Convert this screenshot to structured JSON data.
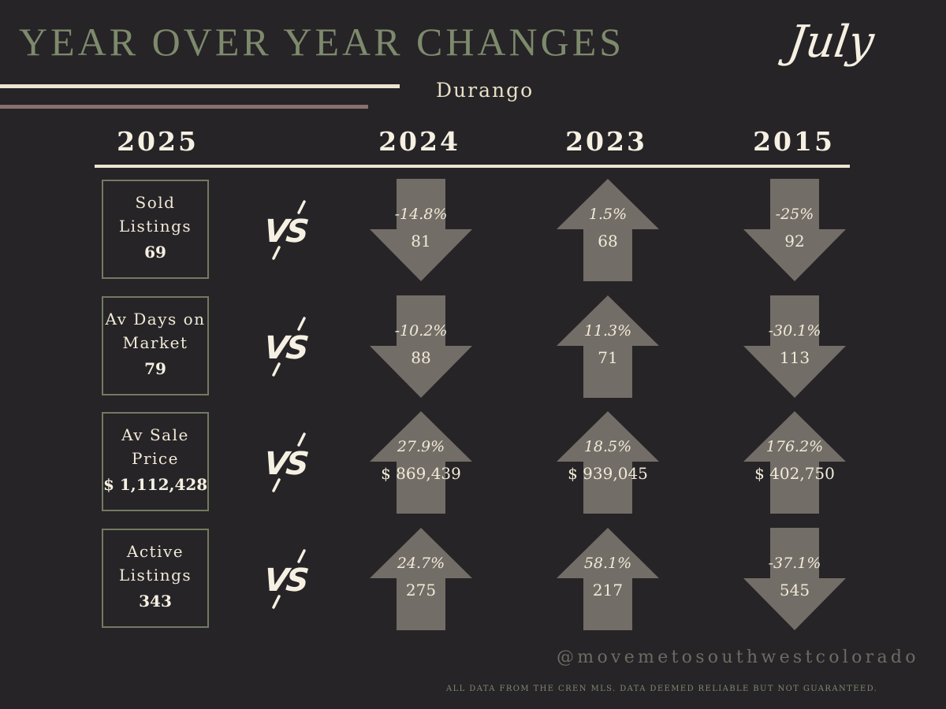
{
  "header": {
    "title": "YEAR OVER YEAR CHANGES",
    "month": "July",
    "location": "Durango"
  },
  "years": {
    "current": "2025",
    "compare": [
      "2024",
      "2023",
      "2015"
    ]
  },
  "vs_label": "VS",
  "colors": {
    "background": "#262427",
    "title_green": "#7d8a6c",
    "cream": "#ece5d1",
    "mauve": "#8a6f6d",
    "arrow_gray": "#736d67",
    "box_border": "#737a62"
  },
  "metrics": [
    {
      "label": "Sold Listings",
      "value": "69",
      "comparisons": [
        {
          "direction": "down",
          "pct": "-14.8%",
          "value": "81"
        },
        {
          "direction": "up",
          "pct": "1.5%",
          "value": "68"
        },
        {
          "direction": "down",
          "pct": "-25%",
          "value": "92"
        }
      ]
    },
    {
      "label": "Av Days on Market",
      "value": "79",
      "comparisons": [
        {
          "direction": "down",
          "pct": "-10.2%",
          "value": "88"
        },
        {
          "direction": "up",
          "pct": "11.3%",
          "value": "71"
        },
        {
          "direction": "down",
          "pct": "-30.1%",
          "value": "113"
        }
      ]
    },
    {
      "label": "Av Sale Price",
      "value": "$ 1,112,428",
      "comparisons": [
        {
          "direction": "up",
          "pct": "27.9%",
          "value": "$ 869,439"
        },
        {
          "direction": "up",
          "pct": "18.5%",
          "value": "$ 939,045"
        },
        {
          "direction": "up",
          "pct": "176.2%",
          "value": "$ 402,750"
        }
      ]
    },
    {
      "label": "Active Listings",
      "value": "343",
      "comparisons": [
        {
          "direction": "up",
          "pct": "24.7%",
          "value": "275"
        },
        {
          "direction": "up",
          "pct": "58.1%",
          "value": "217"
        },
        {
          "direction": "down",
          "pct": "-37.1%",
          "value": "545"
        }
      ]
    }
  ],
  "footer": {
    "handle": "@movemetosouthwestcolorado",
    "disclaimer": "ALL DATA FROM THE CREN MLS. DATA DEEMED RELIABLE BUT NOT GUARANTEED."
  }
}
